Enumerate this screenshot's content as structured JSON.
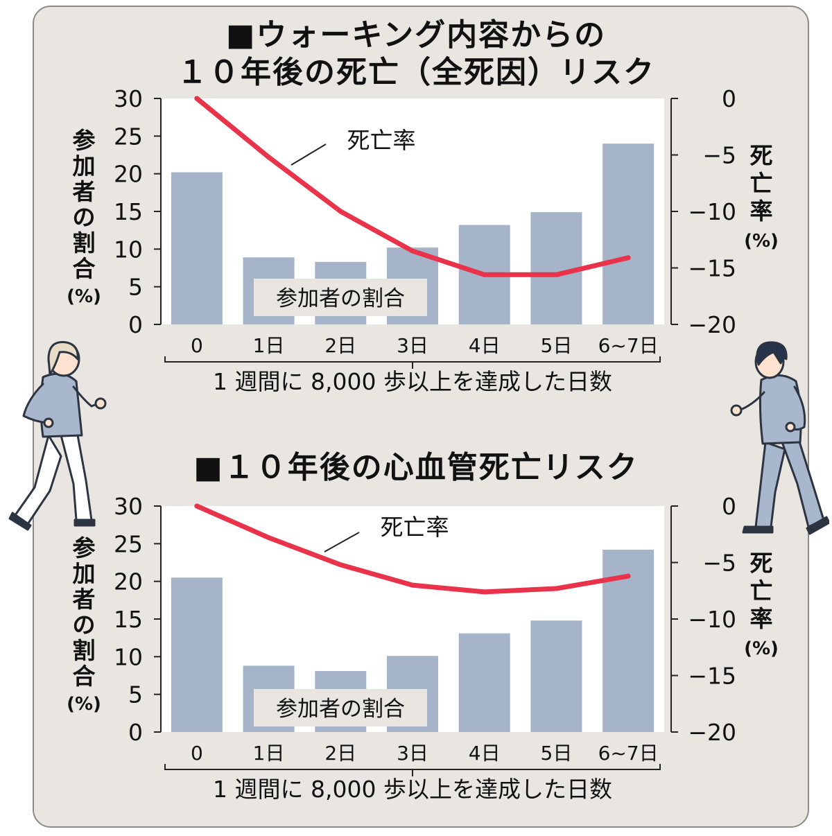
{
  "charts": [
    {
      "title_lines": [
        "■ウォーキング内容からの",
        "１０年後の死亡（全死因）リスク"
      ],
      "bar_label": "参加者の割合",
      "line_label": "死亡率",
      "left_axis_label": [
        "参",
        "加",
        "者",
        "の",
        "割",
        "合",
        "(%)"
      ],
      "right_axis_label": [
        "死",
        "亡",
        "率",
        "(%)"
      ],
      "x_caption": "1 週間に 8,000 歩以上を達成した日数"
    },
    {
      "title_lines": [
        "■１０年後の心血管死亡リスク"
      ],
      "bar_label": "参加者の割合",
      "line_label": "死亡率",
      "left_axis_label": [
        "参",
        "加",
        "者",
        "の",
        "割",
        "合",
        "(%)"
      ],
      "right_axis_label": [
        "死",
        "亡",
        "率",
        "(%)"
      ],
      "x_caption": "1 週間に 8,000 歩以上を達成した日数"
    }
  ],
  "chart_data": [
    {
      "type": "bar",
      "title": "■ウォーキング内容からの １０年後の死亡（全死因）リスク",
      "categories": [
        "0",
        "1日",
        "2日",
        "3日",
        "4日",
        "5日",
        "6~7日"
      ],
      "series": [
        {
          "name": "参加者の割合",
          "type": "bar",
          "axis": "left",
          "values": [
            20.2,
            8.9,
            8.3,
            10.2,
            13.2,
            14.9,
            24.0
          ]
        },
        {
          "name": "死亡率",
          "type": "line",
          "axis": "right",
          "values": [
            0,
            -5.2,
            -10.0,
            -13.5,
            -15.6,
            -15.6,
            -14.1
          ]
        }
      ],
      "xlabel": "1 週間に 8,000 歩以上を達成した日数",
      "ylabel_left": "参加者の割合（%）",
      "ylabel_right": "死亡率（%）",
      "ylim_left": [
        0,
        30
      ],
      "ylim_right": [
        -20,
        0
      ],
      "yticks_left": [
        0,
        5,
        10,
        15,
        20,
        25,
        30
      ],
      "yticks_right": [
        0,
        -5,
        -10,
        -15,
        -20
      ],
      "ytick_labels_right": [
        "0",
        "−5",
        "−10",
        "−15",
        "−20"
      ],
      "colors": {
        "bar": "#a5b4c9",
        "line": "#e8334a"
      }
    },
    {
      "type": "bar",
      "title": "■１０年後の心血管死亡リスク",
      "categories": [
        "0",
        "1日",
        "2日",
        "3日",
        "4日",
        "5日",
        "6~7日"
      ],
      "series": [
        {
          "name": "参加者の割合",
          "type": "bar",
          "axis": "left",
          "values": [
            20.5,
            8.8,
            8.1,
            10.1,
            13.1,
            14.8,
            24.2
          ]
        },
        {
          "name": "死亡率",
          "type": "line",
          "axis": "right",
          "values": [
            0,
            -2.8,
            -5.2,
            -7.0,
            -7.6,
            -7.3,
            -6.2
          ]
        }
      ],
      "xlabel": "1 週間に 8,000 歩以上を達成した日数",
      "ylabel_left": "参加者の割合（%）",
      "ylabel_right": "死亡率（%）",
      "ylim_left": [
        0,
        30
      ],
      "ylim_right": [
        -20,
        0
      ],
      "yticks_left": [
        0,
        5,
        10,
        15,
        20,
        25,
        30
      ],
      "yticks_right": [
        0,
        -5,
        -10,
        -15,
        -20
      ],
      "ytick_labels_right": [
        "0",
        "−5",
        "−10",
        "−15",
        "−20"
      ],
      "colors": {
        "bar": "#a5b4c9",
        "line": "#e8334a"
      }
    }
  ],
  "illustrations": {
    "left": "walking-woman-icon",
    "right": "walking-man-icon"
  }
}
